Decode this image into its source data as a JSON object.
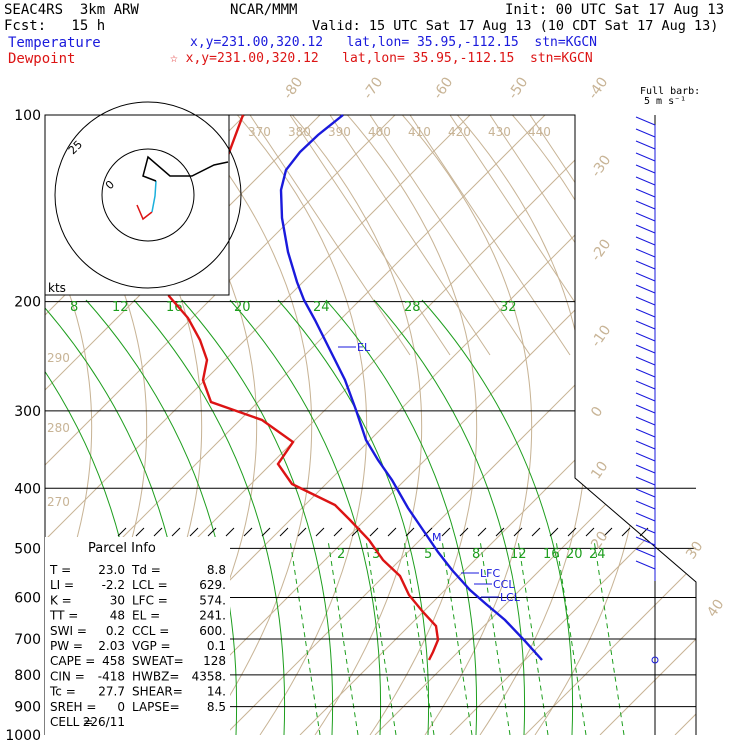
{
  "header": {
    "model": "SEAC4RS  3km ARW",
    "fcst": "Fcst:   15 h",
    "center": "NCAR/MMM",
    "init": "Init: 00 UTC Sat 17 Aug 13",
    "valid": "Valid: 15 UTC Sat 17 Aug 13 (10 CDT Sat 17 Aug 13)",
    "temp_label": "Temperature",
    "dew_label": "Dewpoint",
    "temp_loc": "x,y=231.00,320.12   lat,lon= 35.95,-112.15  stn=KGCN",
    "dew_loc": "☆ x,y=231.00,320.12   lat,lon= 35.95,-112.15  stn=KGCN",
    "barb_label1": "Full barb:",
    "barb_label2": "5 m s⁻¹"
  },
  "parcel_title": "Parcel Info",
  "parcel_rows": [
    [
      "T   =",
      "23.0",
      "Td =",
      "8.8"
    ],
    [
      "LI  =",
      "-2.2",
      "LCL =",
      "629."
    ],
    [
      "K   =",
      "30",
      "LFC =",
      "574."
    ],
    [
      "TT  =",
      "48",
      "EL  =",
      "241."
    ],
    [
      "SWI =",
      "0.2",
      "CCL =",
      "600."
    ],
    [
      "PW  =",
      "2.03",
      "VGP =",
      "0.1"
    ],
    [
      "CAPE =",
      "458",
      "SWEAT=",
      "128"
    ],
    [
      "CIN =",
      "-418",
      "HWBZ=",
      "4358."
    ],
    [
      "Tc  =",
      "27.7",
      "SHEAR=",
      "14."
    ],
    [
      "SREH =",
      "0",
      "LAPSE=",
      "8.5"
    ],
    [
      "CELL =",
      "226/11",
      "",
      ""
    ]
  ],
  "hodo": {
    "ring_label": "25",
    "center_label": "0",
    "units": "kts"
  },
  "chart_data": {
    "type": "line",
    "title": "",
    "y_scale": "log-pressure (hPa)",
    "pressure_ticks": [
      "100",
      "200",
      "300",
      "400",
      "500",
      "600",
      "700",
      "800",
      "900",
      "1000"
    ],
    "isotherm_labels_top": [
      "-80",
      "-70",
      "-60",
      "-50",
      "-40"
    ],
    "isotherm_labels_right": [
      "-30",
      "-20",
      "-10",
      "0",
      "10",
      "20",
      "30",
      "40"
    ],
    "theta_labels_top": [
      "370",
      "380",
      "390",
      "400",
      "410",
      "420",
      "430",
      "440"
    ],
    "theta_labels_side": [
      "290",
      "280",
      "270"
    ],
    "mixing_ratio_labels_upper": [
      "8",
      "12",
      "16",
      "20",
      "24",
      "28",
      "32"
    ],
    "mixing_ratio_labels_lower": [
      "2",
      "3",
      "5",
      "8",
      "12",
      "16",
      "20",
      "24"
    ],
    "levels": [
      {
        "name": "EL",
        "p": 241
      },
      {
        "name": "LFC",
        "p": 574
      },
      {
        "name": "CCL",
        "p": 600
      },
      {
        "name": "LCL",
        "p": 629
      },
      {
        "name": "M",
        "p": 497
      }
    ],
    "series": [
      {
        "name": "Temperature",
        "color": "#1a1adc"
      },
      {
        "name": "Dewpoint",
        "color": "#dc1414"
      }
    ]
  }
}
